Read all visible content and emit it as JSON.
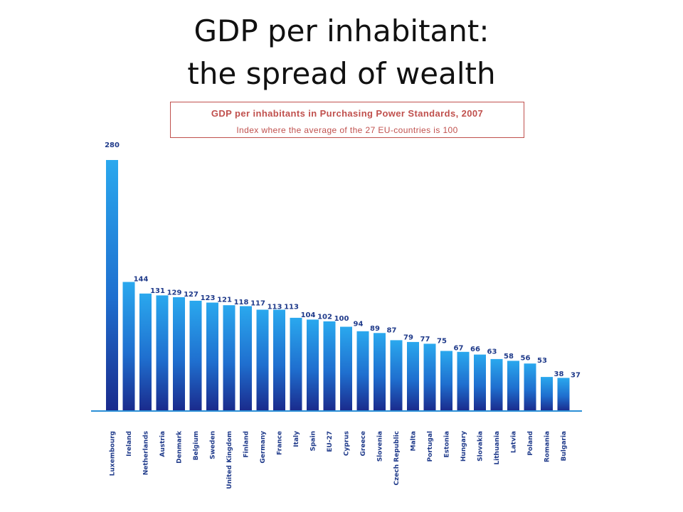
{
  "slide": {
    "title_line1": "GDP per inhabitant:",
    "title_line2": "the spread of wealth"
  },
  "colors": {
    "bar_light": "#2aa8ee",
    "bar_dark": "#1a2a8c",
    "label": "#1f3a8a",
    "box_border": "#c0504d",
    "box_text": "#c0504d",
    "baseline": "#2b8fd6"
  },
  "chart_data": {
    "type": "bar",
    "title": "GDP per inhabitants in Purchasing Power Standards, 2007",
    "subtitle": "Index where the average of the 27 EU-countries is 100",
    "categories": [
      "Luxembourg",
      "Ireland",
      "Netherlands",
      "Austria",
      "Denmark",
      "Belgium",
      "Sweden",
      "United Kingdom",
      "Finland",
      "Germany",
      "France",
      "Italy",
      "Spain",
      "EU-27",
      "Cyprus",
      "Greece",
      "Slovenia",
      "Czech Republic",
      "Malta",
      "Portugal",
      "Estonia",
      "Hungary",
      "Slovakia",
      "Lithuania",
      "Latvia",
      "Poland",
      "Romania",
      "Bulgaria"
    ],
    "values": [
      280,
      144,
      131,
      129,
      127,
      123,
      121,
      118,
      117,
      113,
      113,
      104,
      102,
      100,
      94,
      89,
      87,
      79,
      77,
      75,
      67,
      66,
      63,
      58,
      56,
      53,
      38,
      37
    ],
    "ylim": [
      0,
      290
    ],
    "grid": false,
    "legend": "none"
  }
}
